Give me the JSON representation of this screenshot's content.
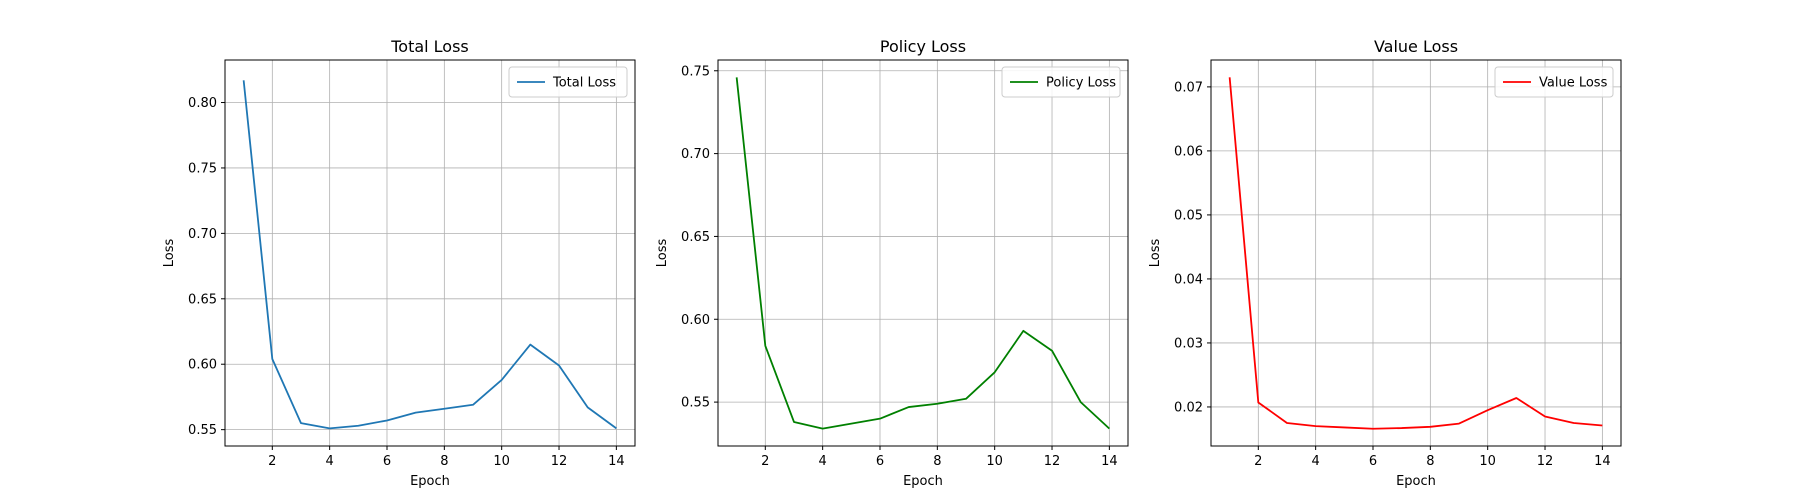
{
  "chart_data": [
    {
      "type": "line",
      "title": "Total Loss",
      "xlabel": "Epoch",
      "ylabel": "Loss",
      "x": [
        1,
        2,
        3,
        4,
        5,
        6,
        7,
        8,
        9,
        10,
        11,
        12,
        13,
        14
      ],
      "series": [
        {
          "name": "Total Loss",
          "color": "#1f77b4",
          "values": [
            0.817,
            0.604,
            0.555,
            0.551,
            0.553,
            0.557,
            0.563,
            0.566,
            0.569,
            0.588,
            0.615,
            0.599,
            0.567,
            0.551
          ]
        }
      ],
      "xlim": [
        0.35,
        14.65
      ],
      "ylim": [
        0.5375,
        0.8325
      ],
      "xticks": [
        2,
        4,
        6,
        8,
        10,
        12,
        14
      ],
      "xtick_labels": [
        "2",
        "4",
        "6",
        "8",
        "10",
        "12",
        "14"
      ],
      "yticks": [
        0.55,
        0.6,
        0.65,
        0.7,
        0.75,
        0.8
      ],
      "ytick_labels": [
        "0.55",
        "0.60",
        "0.65",
        "0.70",
        "0.75",
        "0.80"
      ],
      "grid": true,
      "legend": "upper-right"
    },
    {
      "type": "line",
      "title": "Policy Loss",
      "xlabel": "Epoch",
      "ylabel": "Loss",
      "x": [
        1,
        2,
        3,
        4,
        5,
        6,
        7,
        8,
        9,
        10,
        11,
        12,
        13,
        14
      ],
      "series": [
        {
          "name": "Policy Loss",
          "color": "#008000",
          "values": [
            0.746,
            0.584,
            0.538,
            0.534,
            0.537,
            0.54,
            0.547,
            0.549,
            0.552,
            0.568,
            0.593,
            0.581,
            0.55,
            0.534
          ]
        }
      ],
      "xlim": [
        0.35,
        14.65
      ],
      "ylim": [
        0.5235,
        0.7565
      ],
      "xticks": [
        2,
        4,
        6,
        8,
        10,
        12,
        14
      ],
      "xtick_labels": [
        "2",
        "4",
        "6",
        "8",
        "10",
        "12",
        "14"
      ],
      "yticks": [
        0.55,
        0.6,
        0.65,
        0.7,
        0.75
      ],
      "ytick_labels": [
        "0.55",
        "0.60",
        "0.65",
        "0.70",
        "0.75"
      ],
      "grid": true,
      "legend": "upper-right"
    },
    {
      "type": "line",
      "title": "Value Loss",
      "xlabel": "Epoch",
      "ylabel": "Loss",
      "x": [
        1,
        2,
        3,
        4,
        5,
        6,
        7,
        8,
        9,
        10,
        11,
        12,
        13,
        14
      ],
      "series": [
        {
          "name": "Value Loss",
          "color": "#ff0000",
          "values": [
            0.0715,
            0.0207,
            0.0175,
            0.017,
            0.0168,
            0.0166,
            0.0167,
            0.0169,
            0.0174,
            0.0195,
            0.0214,
            0.0185,
            0.0175,
            0.0171
          ]
        }
      ],
      "xlim": [
        0.35,
        14.65
      ],
      "ylim": [
        0.0139,
        0.0742
      ],
      "xticks": [
        2,
        4,
        6,
        8,
        10,
        12,
        14
      ],
      "xtick_labels": [
        "2",
        "4",
        "6",
        "8",
        "10",
        "12",
        "14"
      ],
      "yticks": [
        0.02,
        0.03,
        0.04,
        0.05,
        0.06,
        0.07
      ],
      "ytick_labels": [
        "0.02",
        "0.03",
        "0.04",
        "0.05",
        "0.06",
        "0.07"
      ],
      "grid": true,
      "legend": "upper-right"
    }
  ]
}
